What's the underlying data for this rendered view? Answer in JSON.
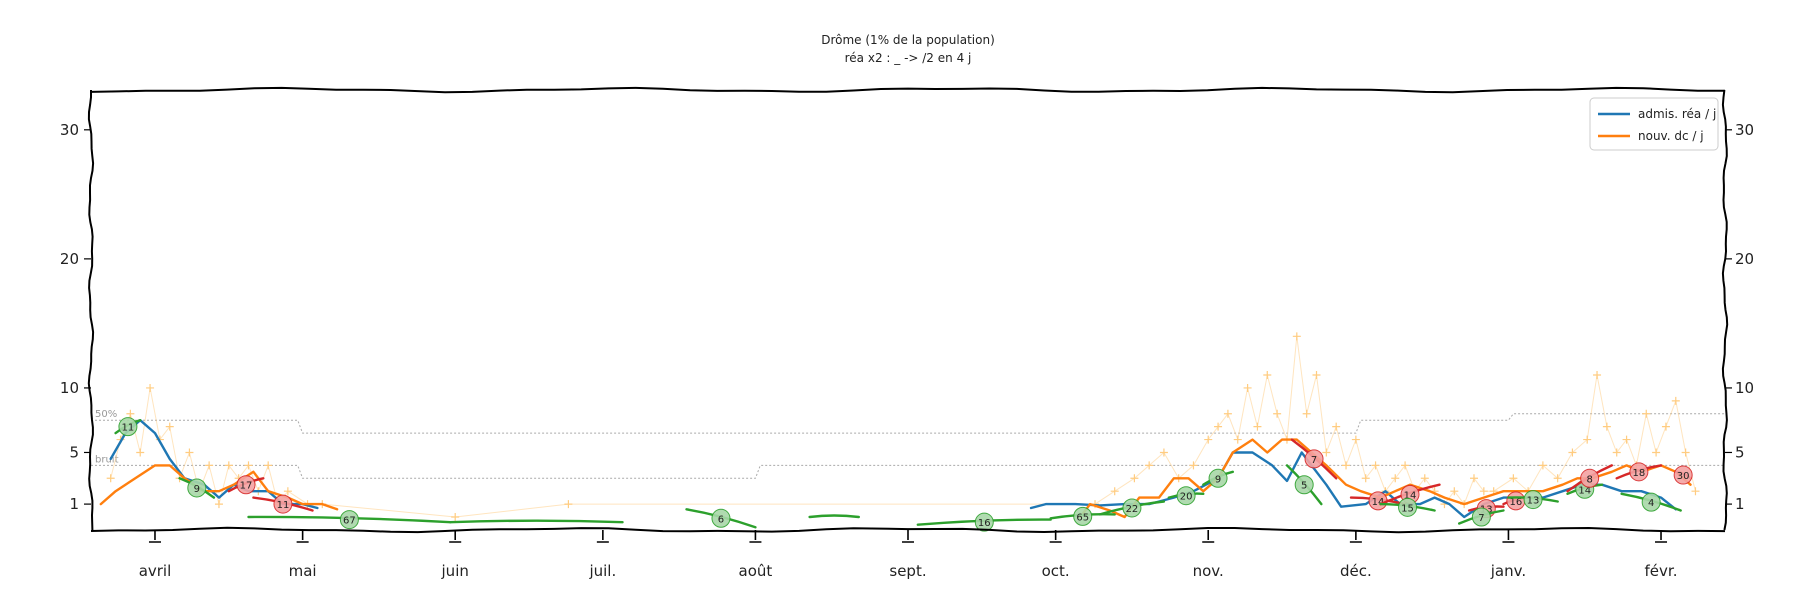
{
  "chart_data": {
    "type": "line",
    "title": "Drôme (1% de la population)",
    "subtitle": "réa x2 : _ -> /2 en 4 j",
    "x_ticks": [
      "avril",
      "mai",
      "juin",
      "juil.",
      "août",
      "sept.",
      "oct.",
      "nov.",
      "déc.",
      "janv.",
      "févr."
    ],
    "x_tick_dates": [
      "2020-04-01",
      "2020-05-01",
      "2020-06-01",
      "2020-07-01",
      "2020-08-01",
      "2020-09-01",
      "2020-10-01",
      "2020-11-01",
      "2020-12-01",
      "2021-01-01",
      "2021-02-01"
    ],
    "x_range": [
      "2020-03-19",
      "2021-02-14"
    ],
    "y_ticks": [
      1,
      5,
      10,
      20,
      30
    ],
    "y_ticks_right": [
      1,
      5,
      10,
      20,
      30
    ],
    "ylim": [
      0,
      32
    ],
    "legend": {
      "position": "top-right",
      "entries": [
        "admis. réa / j",
        "nouv. dc / j"
      ]
    },
    "annotations": {
      "band_upper_label": "50%",
      "band_lower_label": "bruit"
    },
    "colors": {
      "rea": "#1f77b4",
      "dc": "#ff7f0e",
      "decrease": "#2ca02c",
      "increase": "#d62728",
      "raw": "#ffcc80",
      "band": "#aaaaaa"
    },
    "series": [
      {
        "name": "admis. réa / j",
        "color": "#1f77b4",
        "segments": [
          [
            [
              "2020-03-23",
              4.5
            ],
            [
              "2020-03-26",
              6.5
            ],
            [
              "2020-03-29",
              7.5
            ],
            [
              "2020-04-01",
              6.5
            ],
            [
              "2020-04-04",
              4.5
            ],
            [
              "2020-04-07",
              3
            ],
            [
              "2020-04-11",
              2.5
            ],
            [
              "2020-04-14",
              1.5
            ],
            [
              "2020-04-17",
              2.5
            ],
            [
              "2020-04-20",
              2
            ],
            [
              "2020-04-24",
              2
            ],
            [
              "2020-04-27",
              1
            ],
            [
              "2020-05-01",
              1
            ],
            [
              "2020-05-04",
              0.7
            ]
          ],
          [
            [
              "2020-09-26",
              0.7
            ],
            [
              "2020-09-29",
              1
            ],
            [
              "2020-10-05",
              1
            ],
            [
              "2020-10-10",
              0.9
            ],
            [
              "2020-10-15",
              1
            ],
            [
              "2020-10-20",
              1
            ],
            [
              "2020-10-25",
              1.5
            ],
            [
              "2020-10-29",
              2
            ],
            [
              "2020-11-03",
              3
            ],
            [
              "2020-11-06",
              5
            ],
            [
              "2020-11-10",
              5
            ],
            [
              "2020-11-14",
              4
            ],
            [
              "2020-11-17",
              2.8
            ],
            [
              "2020-11-20",
              5
            ],
            [
              "2020-11-25",
              2.5
            ],
            [
              "2020-11-28",
              0.8
            ],
            [
              "2020-12-03",
              1
            ],
            [
              "2020-12-07",
              2
            ],
            [
              "2020-12-10",
              1
            ],
            [
              "2020-12-14",
              1
            ],
            [
              "2020-12-17",
              1.5
            ],
            [
              "2020-12-20",
              1
            ],
            [
              "2020-12-23",
              0
            ],
            [
              "2020-12-27",
              1
            ],
            [
              "2020-12-31",
              1.5
            ],
            [
              "2021-01-04",
              1.5
            ],
            [
              "2021-01-08",
              1.5
            ],
            [
              "2021-01-12",
              2
            ],
            [
              "2021-01-16",
              2.5
            ],
            [
              "2021-01-20",
              2.5
            ],
            [
              "2021-01-24",
              2
            ],
            [
              "2021-01-28",
              2
            ],
            [
              "2021-02-01",
              1.5
            ],
            [
              "2021-02-04",
              0.6
            ]
          ]
        ]
      },
      {
        "name": "nouv. dc / j",
        "color": "#ff7f0e",
        "segments": [
          [
            [
              "2020-03-21",
              1
            ],
            [
              "2020-03-24",
              2
            ],
            [
              "2020-03-28",
              3
            ],
            [
              "2020-04-01",
              4
            ],
            [
              "2020-04-04",
              4
            ],
            [
              "2020-04-07",
              3
            ],
            [
              "2020-04-11",
              2
            ],
            [
              "2020-04-14",
              2
            ],
            [
              "2020-04-17",
              2.5
            ],
            [
              "2020-04-21",
              3.5
            ],
            [
              "2020-04-24",
              2
            ],
            [
              "2020-04-28",
              1.5
            ],
            [
              "2020-05-01",
              1
            ],
            [
              "2020-05-05",
              1
            ],
            [
              "2020-05-08",
              0.6
            ]
          ],
          [
            [
              "2020-10-06",
              0
            ],
            [
              "2020-10-08",
              1
            ],
            [
              "2020-10-12",
              0.5
            ],
            [
              "2020-10-15",
              0
            ],
            [
              "2020-10-18",
              1.5
            ],
            [
              "2020-10-22",
              1.5
            ],
            [
              "2020-10-25",
              3
            ],
            [
              "2020-10-28",
              3
            ],
            [
              "2020-10-31",
              2
            ],
            [
              "2020-11-03",
              3
            ],
            [
              "2020-11-06",
              5
            ],
            [
              "2020-11-10",
              6
            ],
            [
              "2020-11-13",
              5
            ],
            [
              "2020-11-16",
              6
            ],
            [
              "2020-11-19",
              6
            ],
            [
              "2020-11-22",
              5
            ],
            [
              "2020-11-25",
              4
            ],
            [
              "2020-11-29",
              2.5
            ],
            [
              "2020-12-02",
              2
            ],
            [
              "2020-12-06",
              1.5
            ],
            [
              "2020-12-09",
              2
            ],
            [
              "2020-12-12",
              2.5
            ],
            [
              "2020-12-16",
              2
            ],
            [
              "2020-12-19",
              1.5
            ],
            [
              "2020-12-23",
              1
            ],
            [
              "2020-12-27",
              1.5
            ],
            [
              "2020-12-31",
              2
            ],
            [
              "2021-01-04",
              2
            ],
            [
              "2021-01-08",
              2
            ],
            [
              "2021-01-12",
              2.5
            ],
            [
              "2021-01-15",
              3
            ],
            [
              "2021-01-18",
              3
            ],
            [
              "2021-01-22",
              3.5
            ],
            [
              "2021-01-25",
              4
            ],
            [
              "2021-01-28",
              3.5
            ],
            [
              "2021-02-01",
              4
            ],
            [
              "2021-02-04",
              3.5
            ],
            [
              "2021-02-07",
              2.5
            ]
          ]
        ]
      }
    ],
    "trend_segments": [
      {
        "color": "#2ca02c",
        "from": [
          "2020-03-24",
          6.5
        ],
        "to": [
          "2020-03-29",
          7.5
        ],
        "label": "11"
      },
      {
        "color": "#2ca02c",
        "from": [
          "2020-04-06",
          3
        ],
        "to": [
          "2020-04-13",
          1.5
        ],
        "label": "9"
      },
      {
        "color": "#d62728",
        "from": [
          "2020-04-16",
          2
        ],
        "to": [
          "2020-04-23",
          3
        ],
        "label": "17"
      },
      {
        "color": "#d62728",
        "from": [
          "2020-04-21",
          1.5
        ],
        "to": [
          "2020-05-03",
          0.5
        ],
        "label": "11"
      },
      {
        "color": "#2ca02c",
        "from": [
          "2020-04-20",
          0
        ],
        "to": [
          "2020-05-31",
          -0.4
        ],
        "label": "67"
      },
      {
        "color": "#2ca02c",
        "from": [
          "2020-05-31",
          -0.4
        ],
        "to": [
          "2020-07-05",
          -0.4
        ],
        "label": ""
      },
      {
        "color": "#2ca02c",
        "from": [
          "2020-07-18",
          0.6
        ],
        "to": [
          "2020-08-01",
          -0.8
        ],
        "label": "6"
      },
      {
        "color": "#2ca02c",
        "from": [
          "2020-08-12",
          0
        ],
        "to": [
          "2020-08-22",
          0
        ],
        "label": ""
      },
      {
        "color": "#2ca02c",
        "from": [
          "2020-09-03",
          -0.6
        ],
        "to": [
          "2020-09-30",
          -0.2
        ],
        "label": "16"
      },
      {
        "color": "#2ca02c",
        "from": [
          "2020-09-30",
          -0.1
        ],
        "to": [
          "2020-10-13",
          0.2
        ],
        "label": "65"
      },
      {
        "color": "#2ca02c",
        "from": [
          "2020-10-10",
          0.2
        ],
        "to": [
          "2020-10-23",
          1.2
        ],
        "label": "22"
      },
      {
        "color": "#2ca02c",
        "from": [
          "2020-10-24",
          1.5
        ],
        "to": [
          "2020-10-31",
          1.8
        ],
        "label": "20"
      },
      {
        "color": "#2ca02c",
        "from": [
          "2020-10-31",
          2.5
        ],
        "to": [
          "2020-11-06",
          3.5
        ],
        "label": "9"
      },
      {
        "color": "#2ca02c",
        "from": [
          "2020-11-17",
          4
        ],
        "to": [
          "2020-11-24",
          1
        ],
        "label": "5"
      },
      {
        "color": "#d62728",
        "from": [
          "2020-11-18",
          6
        ],
        "to": [
          "2020-11-27",
          3
        ],
        "label": "7"
      },
      {
        "color": "#d62728",
        "from": [
          "2020-11-30",
          1.5
        ],
        "to": [
          "2020-12-11",
          1
        ],
        "label": "14"
      },
      {
        "color": "#d62728",
        "from": [
          "2020-12-06",
          1
        ],
        "to": [
          "2020-12-18",
          2.5
        ],
        "label": "14"
      },
      {
        "color": "#2ca02c",
        "from": [
          "2020-12-06",
          1
        ],
        "to": [
          "2020-12-17",
          0.5
        ],
        "label": "15"
      },
      {
        "color": "#d62728",
        "from": [
          "2020-12-24",
          0.5
        ],
        "to": [
          "2020-12-31",
          0.8
        ],
        "label": "13"
      },
      {
        "color": "#2ca02c",
        "from": [
          "2020-12-22",
          -0.5
        ],
        "to": [
          "2020-12-31",
          0.5
        ],
        "label": "7"
      },
      {
        "color": "#d62728",
        "from": [
          "2020-12-31",
          1
        ],
        "to": [
          "2021-01-05",
          1.5
        ],
        "label": "16"
      },
      {
        "color": "#2ca02c",
        "from": [
          "2021-01-01",
          1.5
        ],
        "to": [
          "2021-01-11",
          1.2
        ],
        "label": "13"
      },
      {
        "color": "#2ca02c",
        "from": [
          "2021-01-13",
          1.8
        ],
        "to": [
          "2021-01-20",
          2.5
        ],
        "label": "14"
      },
      {
        "color": "#d62728",
        "from": [
          "2021-01-13",
          2
        ],
        "to": [
          "2021-01-22",
          4
        ],
        "label": "8"
      },
      {
        "color": "#d62728",
        "from": [
          "2021-01-23",
          3
        ],
        "to": [
          "2021-02-01",
          4
        ],
        "label": "18"
      },
      {
        "color": "#d62728",
        "from": [
          "2021-02-04",
          3.5
        ],
        "to": [
          "2021-02-07",
          3
        ],
        "label": "30"
      },
      {
        "color": "#2ca02c",
        "from": [
          "2021-01-24",
          1.8
        ],
        "to": [
          "2021-02-05",
          0.5
        ],
        "label": "4"
      }
    ],
    "raw_points": [
      [
        "2020-03-23",
        3
      ],
      [
        "2020-03-25",
        6
      ],
      [
        "2020-03-27",
        8
      ],
      [
        "2020-03-29",
        5
      ],
      [
        "2020-03-31",
        10
      ],
      [
        "2020-04-02",
        6
      ],
      [
        "2020-04-04",
        7
      ],
      [
        "2020-04-06",
        3
      ],
      [
        "2020-04-08",
        5
      ],
      [
        "2020-04-10",
        2
      ],
      [
        "2020-04-12",
        4
      ],
      [
        "2020-04-14",
        1
      ],
      [
        "2020-04-16",
        4
      ],
      [
        "2020-04-18",
        3
      ],
      [
        "2020-04-20",
        4
      ],
      [
        "2020-04-22",
        2
      ],
      [
        "2020-04-24",
        4
      ],
      [
        "2020-04-26",
        1
      ],
      [
        "2020-04-28",
        2
      ],
      [
        "2020-05-02",
        1
      ],
      [
        "2020-05-05",
        1
      ],
      [
        "2020-06-01",
        0
      ],
      [
        "2020-06-24",
        1
      ],
      [
        "2020-10-09",
        1
      ],
      [
        "2020-10-13",
        2
      ],
      [
        "2020-10-17",
        3
      ],
      [
        "2020-10-20",
        4
      ],
      [
        "2020-10-23",
        5
      ],
      [
        "2020-10-26",
        3
      ],
      [
        "2020-10-29",
        4
      ],
      [
        "2020-11-01",
        6
      ],
      [
        "2020-11-03",
        7
      ],
      [
        "2020-11-05",
        8
      ],
      [
        "2020-11-07",
        6
      ],
      [
        "2020-11-09",
        10
      ],
      [
        "2020-11-11",
        7
      ],
      [
        "2020-11-13",
        11
      ],
      [
        "2020-11-15",
        8
      ],
      [
        "2020-11-17",
        6
      ],
      [
        "2020-11-19",
        14
      ],
      [
        "2020-11-21",
        8
      ],
      [
        "2020-11-23",
        11
      ],
      [
        "2020-11-25",
        5
      ],
      [
        "2020-11-27",
        7
      ],
      [
        "2020-11-29",
        4
      ],
      [
        "2020-12-01",
        6
      ],
      [
        "2020-12-03",
        3
      ],
      [
        "2020-12-05",
        4
      ],
      [
        "2020-12-07",
        2
      ],
      [
        "2020-12-09",
        3
      ],
      [
        "2020-12-11",
        4
      ],
      [
        "2020-12-13",
        2
      ],
      [
        "2020-12-15",
        3
      ],
      [
        "2020-12-17",
        2
      ],
      [
        "2020-12-19",
        1
      ],
      [
        "2020-12-21",
        2
      ],
      [
        "2020-12-23",
        1
      ],
      [
        "2020-12-25",
        3
      ],
      [
        "2020-12-27",
        2
      ],
      [
        "2020-12-29",
        2
      ],
      [
        "2021-01-02",
        3
      ],
      [
        "2021-01-05",
        2
      ],
      [
        "2021-01-08",
        4
      ],
      [
        "2021-01-11",
        3
      ],
      [
        "2021-01-14",
        5
      ],
      [
        "2021-01-17",
        6
      ],
      [
        "2021-01-19",
        11
      ],
      [
        "2021-01-21",
        7
      ],
      [
        "2021-01-23",
        5
      ],
      [
        "2021-01-25",
        6
      ],
      [
        "2021-01-27",
        4
      ],
      [
        "2021-01-29",
        8
      ],
      [
        "2021-01-31",
        5
      ],
      [
        "2021-02-02",
        7
      ],
      [
        "2021-02-04",
        9
      ],
      [
        "2021-02-06",
        5
      ],
      [
        "2021-02-08",
        2
      ]
    ],
    "band_upper": [
      [
        "2020-03-19",
        7.5
      ],
      [
        "2020-04-30",
        7.5
      ],
      [
        "2020-05-01",
        6.5
      ],
      [
        "2020-12-01",
        6.5
      ],
      [
        "2020-12-02",
        7.5
      ],
      [
        "2021-01-01",
        7.5
      ],
      [
        "2021-01-02",
        8
      ],
      [
        "2021-02-14",
        8
      ]
    ],
    "band_lower": [
      [
        "2020-03-19",
        4
      ],
      [
        "2020-04-30",
        4
      ],
      [
        "2020-05-01",
        3
      ],
      [
        "2020-08-01",
        3
      ],
      [
        "2020-08-02",
        4
      ],
      [
        "2021-02-14",
        4
      ]
    ]
  }
}
